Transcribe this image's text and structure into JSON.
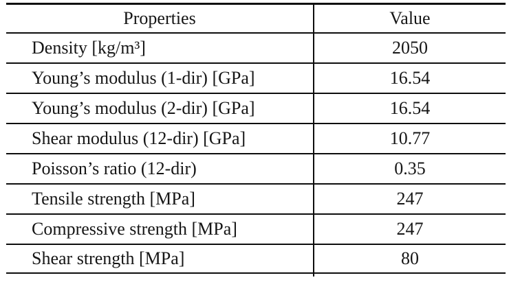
{
  "table": {
    "headers": {
      "property": "Properties",
      "value": "Value"
    },
    "rows": [
      {
        "property": "Density [kg/m³]",
        "value": "2050"
      },
      {
        "property": "Young’s modulus (1-dir) [GPa]",
        "value": "16.54"
      },
      {
        "property": "Young’s modulus (2-dir) [GPa]",
        "value": "16.54"
      },
      {
        "property": "Shear modulus (12-dir) [GPa]",
        "value": "10.77"
      },
      {
        "property": "Poisson’s ratio (12-dir)",
        "value": "0.35"
      },
      {
        "property": "Tensile strength [MPa]",
        "value": "247"
      },
      {
        "property": "Compressive strength [MPa]",
        "value": "247"
      },
      {
        "property": "Shear strength [MPa]",
        "value": "80"
      }
    ],
    "colors": {
      "text": "#161616",
      "rule": "#0d0d0d",
      "background": "#ffffff"
    }
  },
  "chart_data": {
    "type": "table",
    "title": "",
    "columns": [
      "Properties",
      "Value"
    ],
    "rows": [
      [
        "Density [kg/m³]",
        2050
      ],
      [
        "Young’s modulus (1-dir) [GPa]",
        16.54
      ],
      [
        "Young’s modulus (2-dir) [GPa]",
        16.54
      ],
      [
        "Shear modulus (12-dir) [GPa]",
        10.77
      ],
      [
        "Poisson’s ratio (12-dir)",
        0.35
      ],
      [
        "Tensile strength [MPa]",
        247
      ],
      [
        "Compressive strength [MPa]",
        247
      ],
      [
        "Shear strength [MPa]",
        80
      ]
    ]
  }
}
